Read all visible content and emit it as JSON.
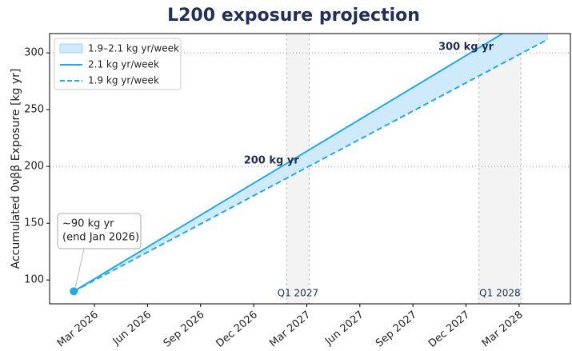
{
  "chart_data": {
    "type": "line",
    "title": "L200 exposure projection",
    "y_label": "Accumulated 0νββ Exposure [kg yr]",
    "xlim": [
      "2025-12-15",
      "2028-05-28"
    ],
    "ylim": [
      79,
      317
    ],
    "yticks": [
      100,
      150,
      200,
      250,
      300
    ],
    "xticks": [
      {
        "value": "2026-03-01",
        "label": "Mar 2026"
      },
      {
        "value": "2026-06-01",
        "label": "Jun 2026"
      },
      {
        "value": "2026-09-01",
        "label": "Sep 2026"
      },
      {
        "value": "2026-12-01",
        "label": "Dec 2026"
      },
      {
        "value": "2027-03-01",
        "label": "Mar 2027"
      },
      {
        "value": "2027-06-01",
        "label": "Jun 2027"
      },
      {
        "value": "2027-09-01",
        "label": "Sep 2027"
      },
      {
        "value": "2027-12-01",
        "label": "Dec 2027"
      },
      {
        "value": "2028-03-01",
        "label": "Mar 2028"
      }
    ],
    "x": [
      "2026-01-26",
      "2028-04-20"
    ],
    "band": {
      "name": "1.9–2.1 kg yr/week",
      "color": "#cfeafa"
    },
    "series": [
      {
        "name": "2.1 kg yr/week",
        "color": "#1eaaf1",
        "style": "solid",
        "values": [
          90,
          341
        ]
      },
      {
        "name": "1.9 kg yr/week",
        "color": "#1eaaf1",
        "style": "dashed",
        "values": [
          90,
          312
        ]
      }
    ],
    "reference_lines": [
      200,
      300
    ],
    "quarters": [
      {
        "label": "Q1 2027",
        "start": "2027-01-27",
        "end": "2027-03-05"
      },
      {
        "label": "Q1 2028",
        "start": "2027-12-23",
        "end": "2028-03-04"
      }
    ],
    "annotations": [
      {
        "text": "200 kg yr",
        "x": "2027-01-01",
        "y": 205
      },
      {
        "text": "300 kg yr",
        "x": "2027-12-01",
        "y": 305
      }
    ],
    "start_point": {
      "x": "2026-01-26",
      "y": 90,
      "lines": [
        "~90 kg yr",
        "(end Jan 2026)"
      ]
    },
    "legend": "upper left"
  }
}
